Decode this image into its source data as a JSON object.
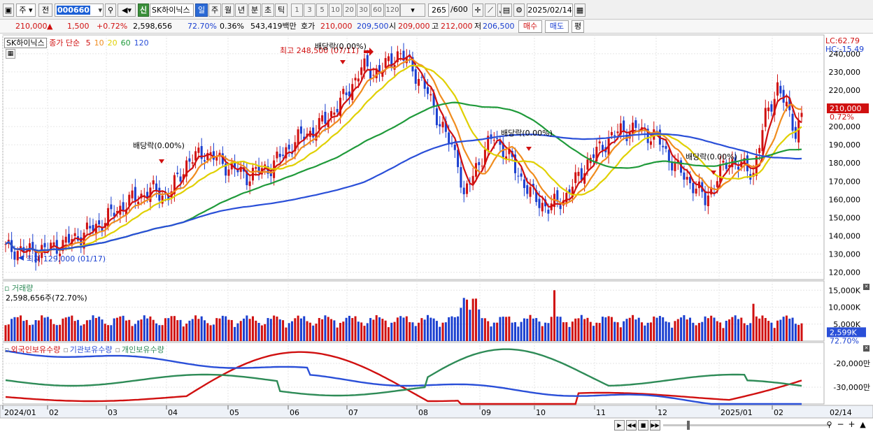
{
  "toolbar": {
    "market_label": "주",
    "prev_label": "전",
    "code_value": "000660",
    "stock_name": "SK하이닉스",
    "new_label": "신",
    "periods": [
      "일",
      "주",
      "월",
      "년",
      "분",
      "초",
      "틱"
    ],
    "selected_period": "일",
    "intervals": [
      "1",
      "3",
      "5",
      "10",
      "20",
      "30",
      "60",
      "120"
    ],
    "count_value": "265",
    "count_total": "/600",
    "date_value": "2025/02/14"
  },
  "quote": {
    "price": "210,000",
    "change_arrow": "▲",
    "change": "1,500",
    "change_pct": "+0.72%",
    "volume": "2,598,656",
    "volume_ratio": "72.70%",
    "turnover": "0.36%",
    "amount": "543,419백만",
    "ask_label": "호가",
    "ask1": "210,000",
    "ask2": "209,500",
    "open_label": "시",
    "open": "209,000",
    "high_label": "고",
    "high": "212,000",
    "low_label": "저",
    "low": "206,500",
    "buy_label": "매수",
    "sell_label": "매도",
    "eval_label": "평"
  },
  "legend": {
    "name": "SK하이닉스",
    "indicator": "종가 단순",
    "ma": [
      {
        "label": "5",
        "color": "#d01010"
      },
      {
        "label": "10",
        "color": "#f08c1e"
      },
      {
        "label": "20",
        "color": "#e0d000"
      },
      {
        "label": "60",
        "color": "#1f9a3a"
      },
      {
        "label": "120",
        "color": "#2a4fd8"
      }
    ],
    "lc": "LC:62.79",
    "hc": "HC:-15.49"
  },
  "annotations": {
    "high": "최고 248,500 (07/11)",
    "low": "최저 129,000 (01/17)",
    "div1": "배당락(0.00%)",
    "div2": "배당락(0.00%)",
    "div3": "배당락(0.00%)",
    "div4": "배당락(0.00%)"
  },
  "price_axis": {
    "ticks": [
      "240,000",
      "230,000",
      "220,000",
      "210,000",
      "200,000",
      "190,000",
      "180,000",
      "170,000",
      "160,000",
      "150,000",
      "140,000",
      "130,000",
      "120,000"
    ],
    "current_price": "210,000",
    "current_pct": "0.72%"
  },
  "volume_panel": {
    "title": "거래량",
    "info": "2,598,656주(72.70%)",
    "ticks": [
      "15,000K",
      "10,000K",
      "5,000K"
    ],
    "current": "2,599K",
    "current_pct": "72.70%"
  },
  "holding_panel": {
    "series": [
      {
        "name": "외국인보유수량",
        "color": "#d01010"
      },
      {
        "name": "기관보유수량",
        "color": "#2a4fd8"
      },
      {
        "name": "개인보유수량",
        "color": "#2e8b57"
      }
    ],
    "ticks": [
      "-20,000만",
      "-30,000만"
    ]
  },
  "x_axis": {
    "labels": [
      "2024/01",
      "02",
      "03",
      "04",
      "05",
      "06",
      "07",
      "08",
      "09",
      "10",
      "11",
      "12",
      "2025/01",
      "02"
    ],
    "right_label": "02/14"
  },
  "colors": {
    "up": "#d01010",
    "down": "#1a3fd0",
    "grid": "#e6e6e6"
  }
}
